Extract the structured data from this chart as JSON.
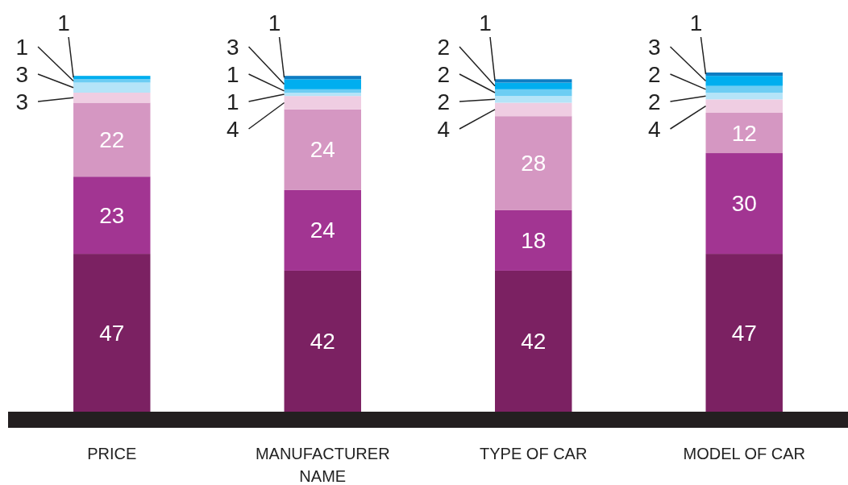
{
  "chart_data": {
    "type": "bar",
    "stacked": true,
    "categories": [
      "PRICE",
      "MANUFACTURER NAME",
      "TYPE OF CAR",
      "MODEL OF CAR"
    ],
    "series": [
      {
        "color": "#7b2162",
        "values": [
          47,
          42,
          42,
          47
        ],
        "value_labels": [
          "47",
          "42",
          "42",
          "47"
        ]
      },
      {
        "color": "#a23592",
        "values": [
          23,
          24,
          18,
          30
        ],
        "value_labels": [
          "23",
          "24",
          "18",
          "30"
        ]
      },
      {
        "color": "#d597c2",
        "values": [
          22,
          24,
          28,
          12
        ],
        "value_labels": [
          "22",
          "24",
          "28",
          "12"
        ]
      },
      {
        "color": "#efcde2",
        "values": [
          3,
          4,
          4,
          4
        ],
        "value_labels": [
          "3",
          "4",
          "4",
          "4"
        ]
      },
      {
        "color": "#b5e4f8",
        "values": [
          3,
          1,
          2,
          2
        ],
        "value_labels": [
          "3",
          "1",
          "2",
          "2"
        ]
      },
      {
        "color": "#6dcdf3",
        "values": [
          1,
          1,
          2,
          2
        ],
        "value_labels": [
          "1",
          "1",
          "2",
          "2"
        ]
      },
      {
        "color": "#00aeef",
        "values": [
          1,
          3,
          2,
          3
        ],
        "value_labels": [
          "1",
          "3",
          "2",
          "3"
        ]
      },
      {
        "color": "#0f7dc2",
        "values": [
          0,
          1,
          1,
          1
        ],
        "value_labels": [
          null,
          "1",
          "1",
          "1"
        ]
      }
    ],
    "ylim": [
      0,
      101
    ],
    "tick_labels": "x"
  }
}
